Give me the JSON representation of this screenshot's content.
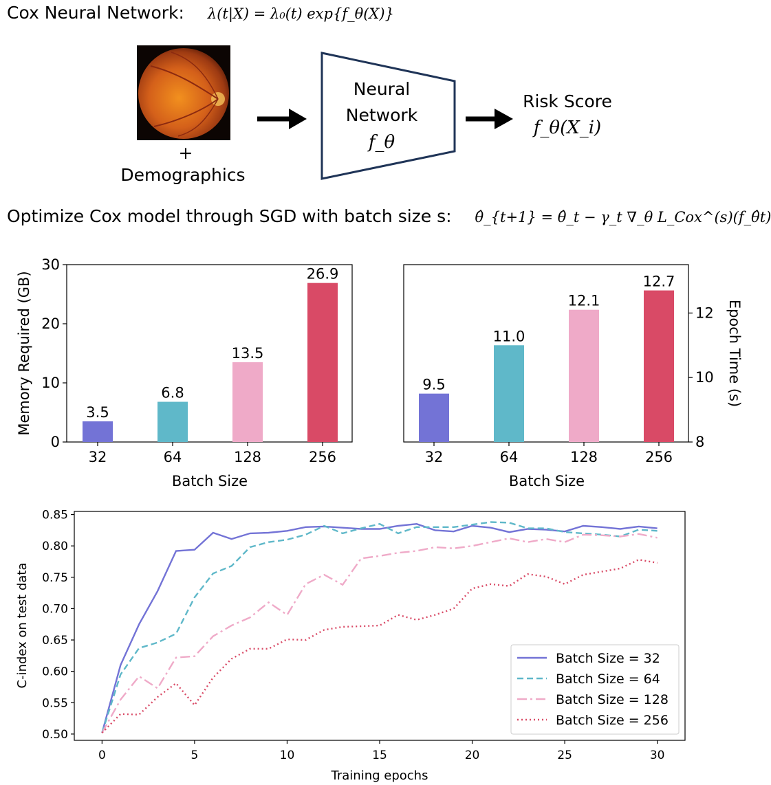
{
  "header": {
    "title": "Cox Neural Network:",
    "formula": "λ(t|X) = λ₀(t) exp{f_θ(X)}"
  },
  "diagram": {
    "plus": "+",
    "demographics": "Demographics",
    "nn_line1": "Neural",
    "nn_line2": "Network",
    "nn_symbol": "f_θ",
    "risk_label": "Risk Score",
    "risk_formula": "f_θ(X_i)"
  },
  "optimize": {
    "text": "Optimize Cox model through SGD with batch size s:",
    "formula": "θ̂_{t+1} = θ̂_t − γ_t ∇_θ L_Cox^(s)(f_θ̂t)"
  },
  "colors": {
    "bs32": "#7373d6",
    "bs64": "#5fb8c9",
    "bs128": "#efaac8",
    "bs256": "#d94a66",
    "nn_border": "#1f3457"
  },
  "chart_data": [
    {
      "type": "bar",
      "categories": [
        "32",
        "64",
        "128",
        "256"
      ],
      "values": [
        3.5,
        6.8,
        13.5,
        26.9
      ],
      "value_labels": [
        "3.5",
        "6.8",
        "13.5",
        "26.9"
      ],
      "xlabel": "Batch Size",
      "ylabel": "Memory Required (GB)",
      "ylim": [
        0,
        30
      ],
      "yticks": [
        "0",
        "10",
        "20",
        "30"
      ]
    },
    {
      "type": "bar",
      "categories": [
        "32",
        "64",
        "128",
        "256"
      ],
      "values": [
        9.5,
        11.0,
        12.1,
        12.7
      ],
      "value_labels": [
        "9.5",
        "11.0",
        "12.1",
        "12.7"
      ],
      "xlabel": "Batch Size",
      "ylabel": "Epoch Time (s)",
      "ylim": [
        8,
        13.5
      ],
      "yticks": [
        "8",
        "10",
        "12"
      ]
    },
    {
      "type": "line",
      "xlabel": "Training epochs",
      "ylabel": "C-index on test data",
      "xlim": [
        -1.5,
        31.5
      ],
      "ylim": [
        0.49,
        0.855
      ],
      "xticks": [
        "0",
        "5",
        "10",
        "15",
        "20",
        "25",
        "30"
      ],
      "yticks": [
        "0.50",
        "0.55",
        "0.60",
        "0.65",
        "0.70",
        "0.75",
        "0.80",
        "0.85"
      ],
      "legend_position": "lower-right",
      "series": [
        {
          "name": "Batch Size = 32",
          "values": [
            0.502,
            0.61,
            0.675,
            0.728,
            0.792,
            0.794,
            0.821,
            0.811,
            0.82,
            0.821,
            0.824,
            0.83,
            0.831,
            0.829,
            0.827,
            0.827,
            0.832,
            0.835,
            0.825,
            0.823,
            0.832,
            0.829,
            0.822,
            0.827,
            0.826,
            0.823,
            0.832,
            0.83,
            0.827,
            0.831,
            0.828
          ]
        },
        {
          "name": "Batch Size = 64",
          "values": [
            0.502,
            0.595,
            0.637,
            0.646,
            0.66,
            0.718,
            0.756,
            0.768,
            0.798,
            0.806,
            0.81,
            0.818,
            0.832,
            0.82,
            0.828,
            0.835,
            0.82,
            0.83,
            0.83,
            0.83,
            0.834,
            0.838,
            0.837,
            0.828,
            0.828,
            0.822,
            0.82,
            0.818,
            0.815,
            0.826,
            0.824
          ]
        },
        {
          "name": "Batch Size = 128",
          "values": [
            0.502,
            0.555,
            0.592,
            0.573,
            0.622,
            0.624,
            0.656,
            0.673,
            0.686,
            0.71,
            0.69,
            0.739,
            0.754,
            0.738,
            0.78,
            0.784,
            0.789,
            0.792,
            0.798,
            0.796,
            0.8,
            0.806,
            0.812,
            0.806,
            0.811,
            0.806,
            0.818,
            0.817,
            0.815,
            0.819,
            0.813
          ]
        },
        {
          "name": "Batch Size = 256",
          "values": [
            0.502,
            0.532,
            0.531,
            0.559,
            0.581,
            0.546,
            0.59,
            0.62,
            0.636,
            0.636,
            0.651,
            0.65,
            0.666,
            0.671,
            0.672,
            0.673,
            0.69,
            0.682,
            0.69,
            0.7,
            0.732,
            0.739,
            0.736,
            0.755,
            0.751,
            0.739,
            0.754,
            0.759,
            0.764,
            0.778,
            0.773
          ]
        }
      ]
    }
  ]
}
